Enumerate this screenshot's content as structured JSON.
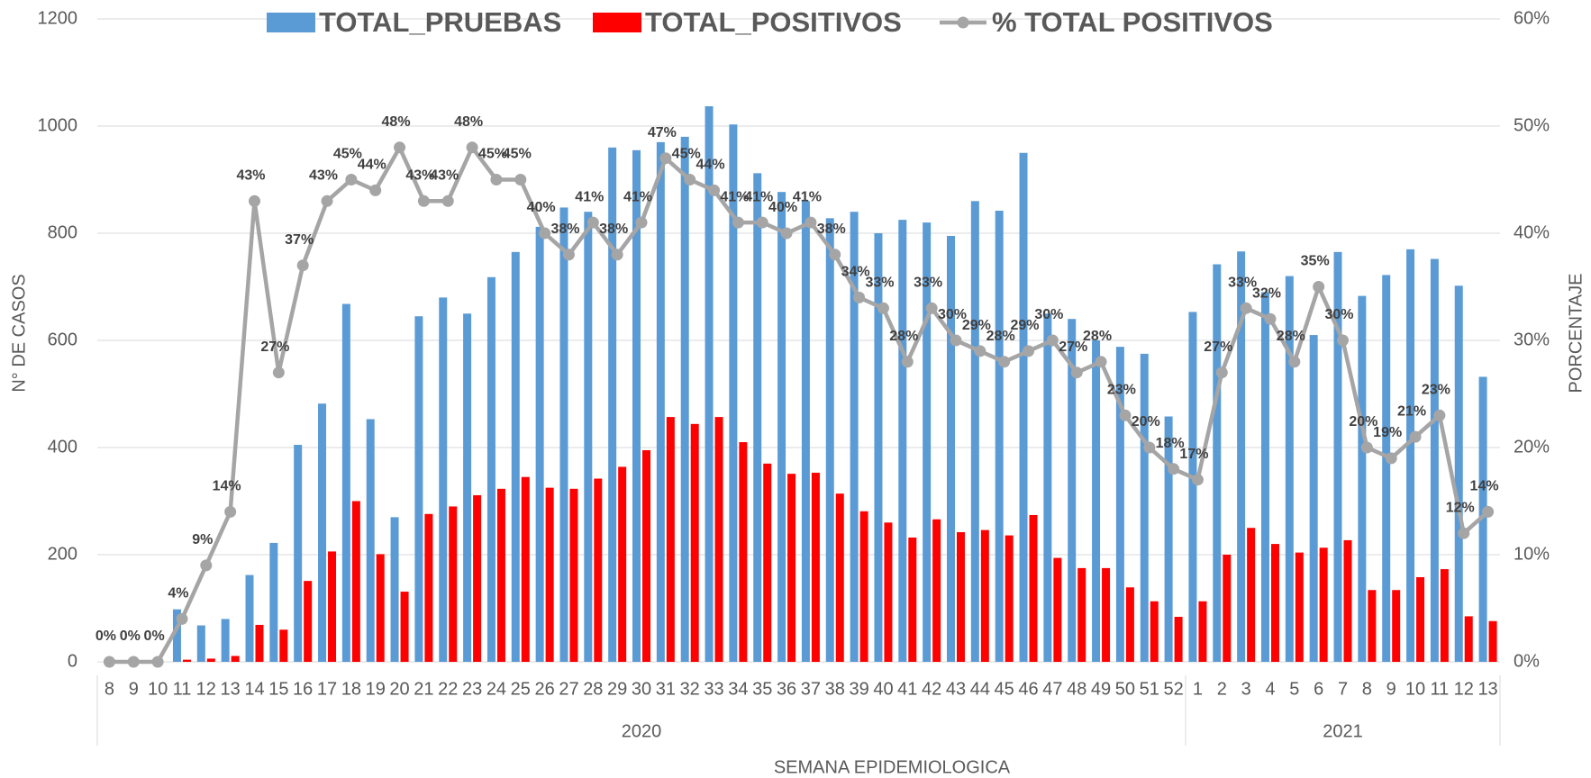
{
  "chart_data": {
    "type": "combo",
    "categories": [
      "8",
      "9",
      "10",
      "11",
      "12",
      "13",
      "14",
      "15",
      "16",
      "17",
      "18",
      "19",
      "20",
      "21",
      "22",
      "23",
      "24",
      "25",
      "26",
      "27",
      "28",
      "29",
      "30",
      "31",
      "32",
      "33",
      "34",
      "35",
      "36",
      "37",
      "38",
      "39",
      "40",
      "41",
      "42",
      "43",
      "44",
      "45",
      "46",
      "47",
      "48",
      "49",
      "50",
      "51",
      "52",
      "1",
      "2",
      "3",
      "4",
      "5",
      "6",
      "7",
      "8",
      "9",
      "10",
      "11",
      "12",
      "13"
    ],
    "groups": [
      {
        "label": "2020",
        "span": 45
      },
      {
        "label": "2021",
        "span": 13
      }
    ],
    "series": [
      {
        "name": "TOTAL_PRUEBAS",
        "kind": "bar",
        "color": "#5b9bd5",
        "values": [
          0,
          0,
          0,
          98,
          68,
          80,
          162,
          222,
          405,
          482,
          668,
          453,
          270,
          645,
          680,
          650,
          718,
          765,
          812,
          848,
          840,
          960,
          955,
          970,
          980,
          1037,
          1003,
          912,
          877,
          860,
          828,
          840,
          800,
          825,
          820,
          795,
          860,
          842,
          950,
          650,
          640,
          600,
          588,
          575,
          458,
          653,
          742,
          766,
          690,
          720,
          610,
          765,
          683,
          722,
          770,
          752,
          702,
          532
        ]
      },
      {
        "name": "TOTAL_POSITIVOS",
        "kind": "bar",
        "color": "#ff0000",
        "values": [
          0,
          0,
          0,
          4,
          6,
          11,
          69,
          60,
          151,
          206,
          300,
          201,
          131,
          276,
          290,
          311,
          323,
          345,
          325,
          323,
          342,
          364,
          395,
          457,
          444,
          457,
          410,
          370,
          351,
          353,
          314,
          281,
          260,
          232,
          266,
          242,
          246,
          236,
          274,
          194,
          175,
          175,
          139,
          113,
          84,
          113,
          200,
          250,
          220,
          204,
          213,
          227,
          134,
          134,
          158,
          173,
          85,
          76
        ]
      },
      {
        "name": "% TOTAL POSITIVOS",
        "kind": "line",
        "axis": "y2",
        "color": "#a5a5a5",
        "values": [
          0,
          0,
          0,
          4,
          9,
          14,
          43,
          27,
          37,
          43,
          45,
          44,
          48,
          43,
          43,
          48,
          45,
          45,
          40,
          38,
          41,
          38,
          41,
          47,
          45,
          44,
          41,
          41,
          40,
          41,
          38,
          34,
          33,
          28,
          33,
          30,
          29,
          28,
          29,
          30,
          27,
          28,
          23,
          20,
          18,
          17,
          27,
          33,
          32,
          28,
          35,
          30,
          20,
          19,
          21,
          23,
          12,
          14
        ],
        "value_labels": [
          "0%",
          "0%",
          "0%",
          "4%",
          "9%",
          "14%",
          "43%",
          "27%",
          "37%",
          "43%",
          "45%",
          "44%",
          "48%",
          "43%",
          "43%",
          "48%",
          "45%",
          "45%",
          "40%",
          "38%",
          "41%",
          "38%",
          "41%",
          "47%",
          "45%",
          "44%",
          "41%",
          "41%",
          "40%",
          "41%",
          "38%",
          "34%",
          "33%",
          "28%",
          "33%",
          "30%",
          "29%",
          "28%",
          "29%",
          "30%",
          "27%",
          "28%",
          "23%",
          "20%",
          "18%",
          "17%",
          "27%",
          "33%",
          "32%",
          "28%",
          "35%",
          "30%",
          "20%",
          "19%",
          "21%",
          "23%",
          "12%",
          "14%"
        ]
      }
    ],
    "ylabel": "N° DE CASOS",
    "y2label": "PORCENTAJE",
    "xlabel": "SEMANA EPIDEMIOLOGICA",
    "ylim": [
      0,
      1200
    ],
    "yticks": [
      0,
      200,
      400,
      600,
      800,
      1000,
      1200
    ],
    "y2lim": [
      0,
      60
    ],
    "y2ticks": [
      {
        "value": 0,
        "label": "0%"
      },
      {
        "value": 10,
        "label": "10%"
      },
      {
        "value": 20,
        "label": "20%"
      },
      {
        "value": 30,
        "label": "30%"
      },
      {
        "value": 40,
        "label": "40%"
      },
      {
        "value": 50,
        "label": "50%"
      },
      {
        "value": 60,
        "label": "60%"
      }
    ],
    "grid": true,
    "legend": "top"
  }
}
